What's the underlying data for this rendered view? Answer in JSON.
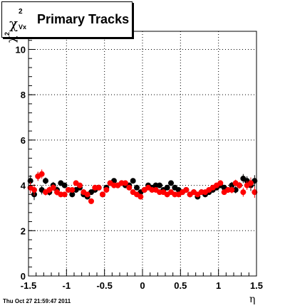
{
  "title": {
    "symbol": "χ",
    "sup": "2",
    "sub": "Vx",
    "text": "Primary Tracks"
  },
  "ylabel": {
    "symbol": "χ",
    "sup": "2"
  },
  "xlabel": "η",
  "timestamp": "Thu Oct 27 21:59:47 2011",
  "colors": {
    "series_black": "#000000",
    "series_red": "#ff0000",
    "grid": "#000000",
    "frame": "#000000"
  },
  "chart_data": {
    "type": "scatter",
    "title": "Primary Tracks",
    "xlabel": "η",
    "ylabel": "χ²",
    "xlim": [
      -1.5,
      1.5
    ],
    "ylim": [
      0,
      10.8
    ],
    "grid": true,
    "x_ticks": [
      "-1.5",
      "-1",
      "-0.5",
      "0",
      "0.5",
      "1",
      "1.5"
    ],
    "x_tick_values": [
      -1.5,
      -1,
      -0.5,
      0,
      0.5,
      1,
      1.5
    ],
    "y_ticks": [
      "0",
      "2",
      "4",
      "6",
      "8",
      "10"
    ],
    "y_tick_values": [
      0,
      2,
      4,
      6,
      8,
      10
    ],
    "series": [
      {
        "color": "#000000",
        "x": [
          -1.475,
          -1.425,
          -1.375,
          -1.325,
          -1.275,
          -1.225,
          -1.175,
          -1.125,
          -1.075,
          -1.025,
          -0.975,
          -0.925,
          -0.875,
          -0.825,
          -0.775,
          -0.725,
          -0.675,
          -0.625,
          -0.575,
          -0.525,
          -0.475,
          -0.425,
          -0.375,
          -0.325,
          -0.275,
          -0.225,
          -0.175,
          -0.125,
          -0.075,
          -0.025,
          0.025,
          0.075,
          0.125,
          0.175,
          0.225,
          0.275,
          0.325,
          0.375,
          0.425,
          0.475,
          0.525,
          0.575,
          0.625,
          0.675,
          0.725,
          0.775,
          0.825,
          0.875,
          0.925,
          0.975,
          1.025,
          1.075,
          1.125,
          1.175,
          1.225,
          1.275,
          1.325,
          1.375,
          1.425,
          1.475
        ],
        "y": [
          4.2,
          3.6,
          4.4,
          3.8,
          4.2,
          3.7,
          4.0,
          3.8,
          4.1,
          4.0,
          3.8,
          3.6,
          3.8,
          3.9,
          3.6,
          3.5,
          3.7,
          3.8,
          3.9,
          3.6,
          3.9,
          4.1,
          4.2,
          4.0,
          4.1,
          4.0,
          4.0,
          4.2,
          3.9,
          3.7,
          3.8,
          4.0,
          3.9,
          4.0,
          4.0,
          3.8,
          3.9,
          4.1,
          3.9,
          3.8,
          3.7,
          3.8,
          3.6,
          3.7,
          3.5,
          3.7,
          3.6,
          3.7,
          3.8,
          3.9,
          4.0,
          3.9,
          3.8,
          4.0,
          3.8,
          4.0,
          4.3,
          4.2,
          4.0,
          4.2
        ],
        "err": [
          0.25,
          0.25,
          0.2,
          0.2,
          0.15,
          0.15,
          0.15,
          0.15,
          0.12,
          0.12,
          0.12,
          0.12,
          0.12,
          0.12,
          0.12,
          0.12,
          0.12,
          0.12,
          0.12,
          0.12,
          0.12,
          0.12,
          0.12,
          0.12,
          0.12,
          0.12,
          0.12,
          0.12,
          0.12,
          0.12,
          0.12,
          0.12,
          0.12,
          0.12,
          0.12,
          0.12,
          0.12,
          0.12,
          0.12,
          0.12,
          0.12,
          0.12,
          0.12,
          0.12,
          0.12,
          0.12,
          0.12,
          0.12,
          0.12,
          0.12,
          0.12,
          0.12,
          0.12,
          0.15,
          0.15,
          0.15,
          0.2,
          0.2,
          0.25,
          0.25
        ]
      },
      {
        "color": "#ff0000",
        "x": [
          -1.475,
          -1.425,
          -1.375,
          -1.325,
          -1.275,
          -1.225,
          -1.175,
          -1.125,
          -1.075,
          -1.025,
          -0.975,
          -0.925,
          -0.875,
          -0.825,
          -0.775,
          -0.725,
          -0.675,
          -0.625,
          -0.575,
          -0.525,
          -0.475,
          -0.425,
          -0.375,
          -0.325,
          -0.275,
          -0.225,
          -0.175,
          -0.125,
          -0.075,
          -0.025,
          0.025,
          0.075,
          0.125,
          0.175,
          0.225,
          0.275,
          0.325,
          0.375,
          0.425,
          0.475,
          0.525,
          0.575,
          0.625,
          0.675,
          0.725,
          0.775,
          0.825,
          0.875,
          0.925,
          0.975,
          1.025,
          1.075,
          1.125,
          1.175,
          1.225,
          1.275,
          1.325,
          1.375,
          1.425,
          1.475
        ],
        "y": [
          3.9,
          3.8,
          4.4,
          4.5,
          3.7,
          3.8,
          3.9,
          3.7,
          3.6,
          3.6,
          3.8,
          3.8,
          4.1,
          4.0,
          3.7,
          3.6,
          3.3,
          3.9,
          3.9,
          3.6,
          3.8,
          4.1,
          4.0,
          4.0,
          4.1,
          4.1,
          3.9,
          3.7,
          3.6,
          3.5,
          3.8,
          3.9,
          3.8,
          3.8,
          3.7,
          3.7,
          3.6,
          3.7,
          3.6,
          3.6,
          3.7,
          3.8,
          3.6,
          3.7,
          3.6,
          3.7,
          3.7,
          3.8,
          3.9,
          4.0,
          4.1,
          3.7,
          3.8,
          3.8,
          4.1,
          4.0,
          3.7,
          4.0,
          4.1,
          3.7
        ],
        "err": [
          0.25,
          0.25,
          0.2,
          0.2,
          0.15,
          0.15,
          0.15,
          0.15,
          0.12,
          0.12,
          0.12,
          0.12,
          0.12,
          0.12,
          0.12,
          0.12,
          0.12,
          0.12,
          0.12,
          0.12,
          0.12,
          0.12,
          0.12,
          0.12,
          0.12,
          0.12,
          0.12,
          0.12,
          0.12,
          0.12,
          0.12,
          0.12,
          0.12,
          0.12,
          0.12,
          0.12,
          0.12,
          0.12,
          0.12,
          0.12,
          0.12,
          0.12,
          0.12,
          0.12,
          0.12,
          0.12,
          0.12,
          0.12,
          0.12,
          0.12,
          0.12,
          0.12,
          0.12,
          0.15,
          0.15,
          0.15,
          0.2,
          0.2,
          0.25,
          0.25
        ]
      }
    ]
  }
}
